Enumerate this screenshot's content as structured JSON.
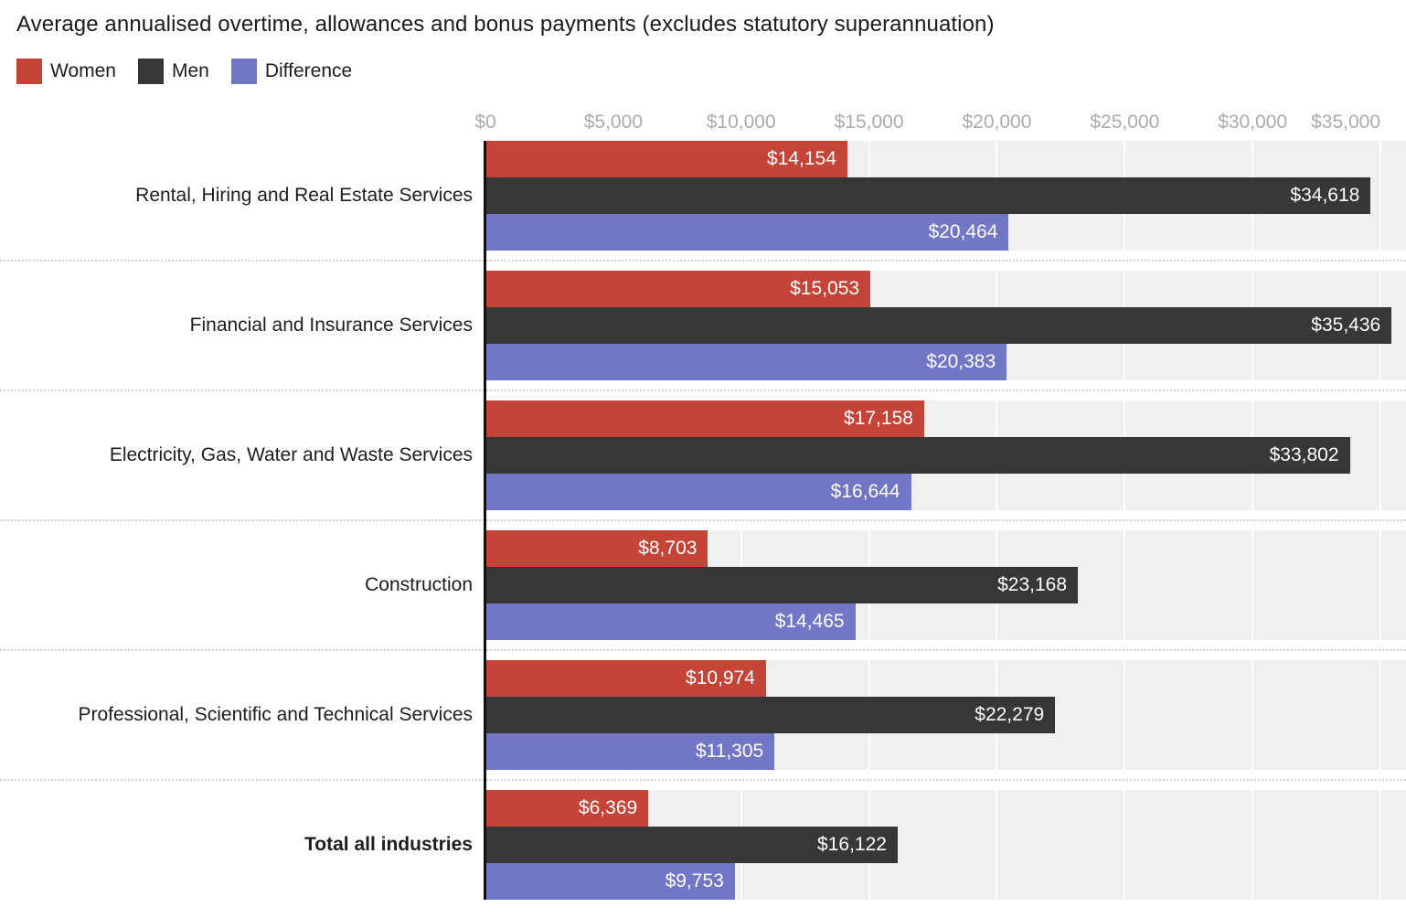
{
  "title": "Average annualised overtime, allowances and bonus payments (excludes statutory superannuation)",
  "legend": {
    "items": [
      {
        "label": "Women",
        "key": "women"
      },
      {
        "label": "Men",
        "key": "men"
      },
      {
        "label": "Difference",
        "key": "difference"
      }
    ],
    "position": "top-left"
  },
  "colors": {
    "women": "#c44437",
    "men": "#373737",
    "difference": "#7177c4",
    "plot_band": "#f0f0f0",
    "gridline": "#ffffff",
    "tick_text": "#ababab",
    "axis_line": "#111111",
    "separator": "#d0d0d0"
  },
  "axis": {
    "max": 36000,
    "ticks": [
      {
        "label": "$0",
        "value": 0
      },
      {
        "label": "$5,000",
        "value": 5000
      },
      {
        "label": "$10,000",
        "value": 10000
      },
      {
        "label": "$15,000",
        "value": 15000
      },
      {
        "label": "$20,000",
        "value": 20000
      },
      {
        "label": "$25,000",
        "value": 25000
      },
      {
        "label": "$30,000",
        "value": 30000
      },
      {
        "label": "$35,000",
        "value": 35000
      }
    ]
  },
  "chart_data": {
    "type": "bar",
    "orientation": "horizontal",
    "title": "Average annualised overtime, allowances and bonus payments (excludes statutory superannuation)",
    "xlabel": "",
    "ylabel": "",
    "xlim": [
      0,
      36000
    ],
    "x_ticks": [
      "$0",
      "$5,000",
      "$10,000",
      "$15,000",
      "$20,000",
      "$25,000",
      "$30,000",
      "$35,000"
    ],
    "grid": "vertical-white-on-grey-band",
    "legend_position": "top-left",
    "categories": [
      "Rental, Hiring and Real Estate Services",
      "Financial and Insurance Services",
      "Electricity, Gas, Water and Waste Services",
      "Construction",
      "Professional, Scientific and Technical Services",
      "Total all industries"
    ],
    "series": [
      {
        "name": "Women",
        "values": [
          14154,
          15053,
          17158,
          8703,
          10974,
          6369
        ]
      },
      {
        "name": "Men",
        "values": [
          34618,
          35436,
          33802,
          23168,
          22279,
          16122
        ]
      },
      {
        "name": "Difference",
        "values": [
          20464,
          20383,
          16644,
          14465,
          11305,
          9753
        ]
      }
    ],
    "rows": [
      {
        "label": "Rental, Hiring and Real Estate Services",
        "emphasis": false,
        "women": {
          "value": 14154,
          "text": "$14,154"
        },
        "men": {
          "value": 34618,
          "text": "$34,618"
        },
        "difference": {
          "value": 20464,
          "text": "$20,464"
        }
      },
      {
        "label": "Financial and Insurance Services",
        "emphasis": false,
        "women": {
          "value": 15053,
          "text": "$15,053"
        },
        "men": {
          "value": 35436,
          "text": "$35,436"
        },
        "difference": {
          "value": 20383,
          "text": "$20,383"
        }
      },
      {
        "label": "Electricity, Gas, Water and Waste Services",
        "emphasis": false,
        "women": {
          "value": 17158,
          "text": "$17,158"
        },
        "men": {
          "value": 33802,
          "text": "$33,802"
        },
        "difference": {
          "value": 16644,
          "text": "$16,644"
        }
      },
      {
        "label": "Construction",
        "emphasis": false,
        "women": {
          "value": 8703,
          "text": "$8,703"
        },
        "men": {
          "value": 23168,
          "text": "$23,168"
        },
        "difference": {
          "value": 14465,
          "text": "$14,465"
        }
      },
      {
        "label": "Professional, Scientific and Technical Services",
        "emphasis": false,
        "women": {
          "value": 10974,
          "text": "$10,974"
        },
        "men": {
          "value": 22279,
          "text": "$22,279"
        },
        "difference": {
          "value": 11305,
          "text": "$11,305"
        }
      },
      {
        "label": "Total all industries",
        "emphasis": true,
        "women": {
          "value": 6369,
          "text": "$6,369"
        },
        "men": {
          "value": 16122,
          "text": "$16,122"
        },
        "difference": {
          "value": 9753,
          "text": "$9,753"
        }
      }
    ]
  }
}
